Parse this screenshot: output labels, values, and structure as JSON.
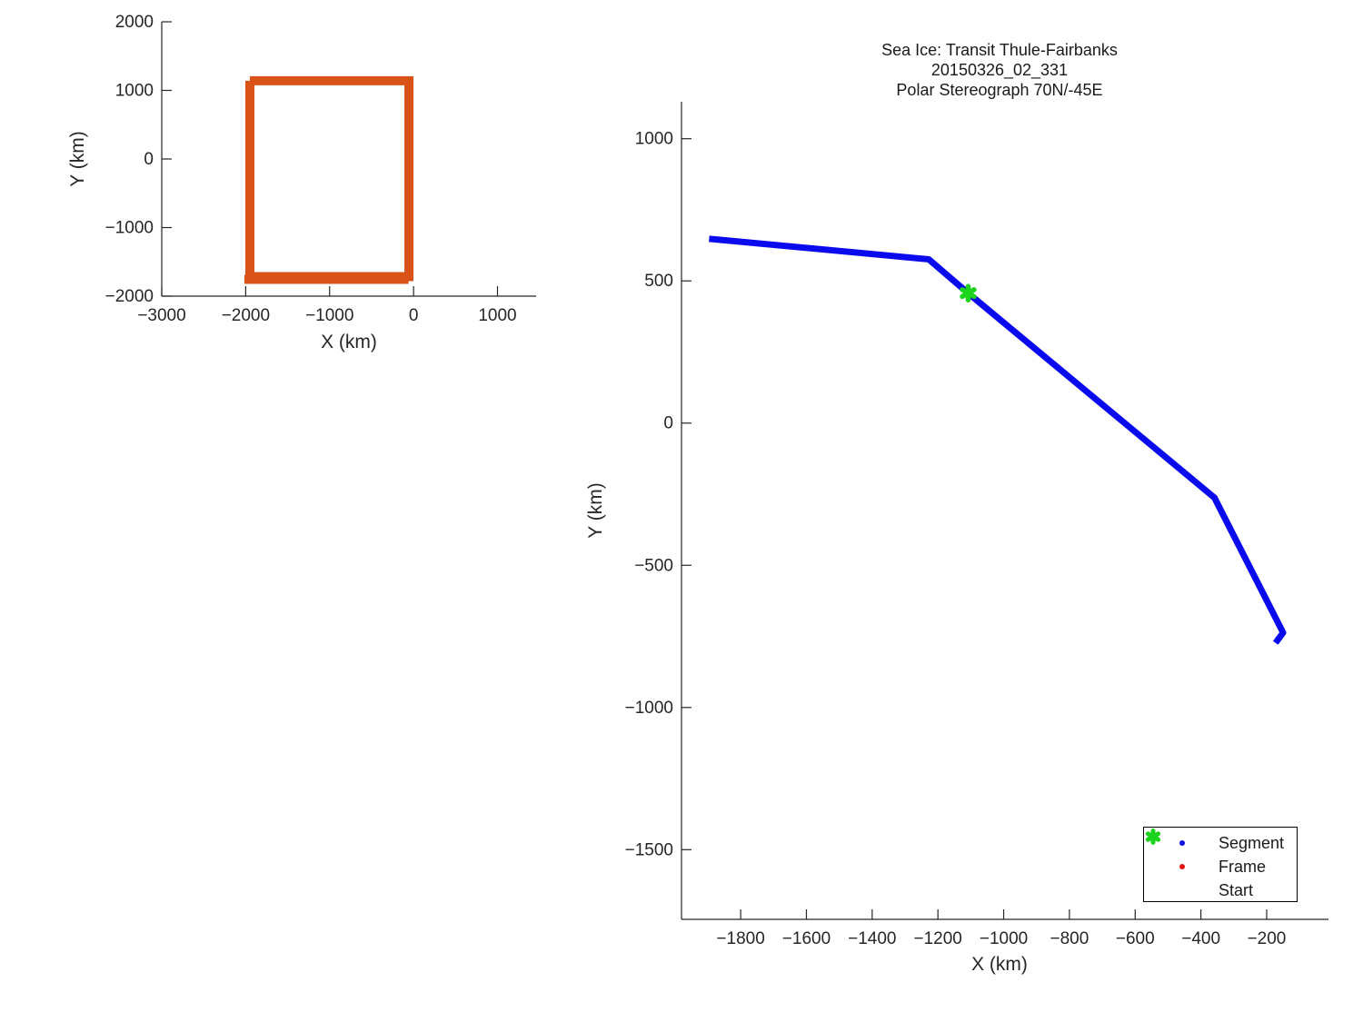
{
  "figure": {
    "background": "#ffffff"
  },
  "colors": {
    "axis": "#262626",
    "segment_blue": "#0a0aee",
    "frame_red": "#e81414",
    "start_green": "#1dd41d",
    "swath_orange": "#d95319"
  },
  "chart_data": [
    {
      "type": "line",
      "title": "",
      "xlabel": "X (km)",
      "ylabel": "Y (km)",
      "xlim": [
        -3000,
        1460
      ],
      "ylim": [
        -2000,
        2000
      ],
      "xticks": [
        -3000,
        -2000,
        -1000,
        0,
        1000
      ],
      "yticks": [
        -2000,
        -1000,
        0,
        1000,
        2000
      ],
      "grid": false,
      "legend_position": "none",
      "series": [
        {
          "name": "swath-outline",
          "color": "#d95319",
          "stroke_width": 10,
          "x": [
            -1950,
            -55,
            -55,
            -1950,
            -1950
          ],
          "y": [
            1140,
            1140,
            -1715,
            -1715,
            1140
          ]
        },
        {
          "name": "swath-outline-bottom-pass",
          "color": "#d95319",
          "stroke_width": 10,
          "x": [
            -2015,
            -60
          ],
          "y": [
            -1755,
            -1755
          ]
        }
      ]
    },
    {
      "type": "line",
      "title_lines": [
        "Sea Ice: Transit Thule-Fairbanks",
        "20150326_02_331",
        "Polar Stereograph 70N/-45E"
      ],
      "xlabel": "X (km)",
      "ylabel": "Y (km)",
      "xlim": [
        -1980,
        -12
      ],
      "ylim": [
        -1745,
        1130
      ],
      "xticks": [
        -1800,
        -1600,
        -1400,
        -1200,
        -1000,
        -800,
        -600,
        -400,
        -200
      ],
      "yticks": [
        -1500,
        -1000,
        -500,
        0,
        500,
        1000
      ],
      "grid": false,
      "legend_position": "bottom-right",
      "series": [
        {
          "name": "segment-track",
          "color": "#0a0aee",
          "stroke_width": 7,
          "join": "round",
          "x": [
            -1896,
            -1228,
            -1108,
            -359,
            -150,
            -173
          ],
          "y": [
            648,
            576,
            457,
            -262,
            -737,
            -773
          ]
        }
      ],
      "start_marker": {
        "x": -1108,
        "y": 457,
        "color": "#1dd41d",
        "size": 15
      },
      "legend": {
        "items": [
          {
            "label": "Segment",
            "marker": "dot",
            "color": "#0a0aee"
          },
          {
            "label": "Frame",
            "marker": "dot",
            "color": "#e81414"
          },
          {
            "label": "Start",
            "marker": "asterisk",
            "color": "#1dd41d"
          }
        ]
      }
    }
  ]
}
